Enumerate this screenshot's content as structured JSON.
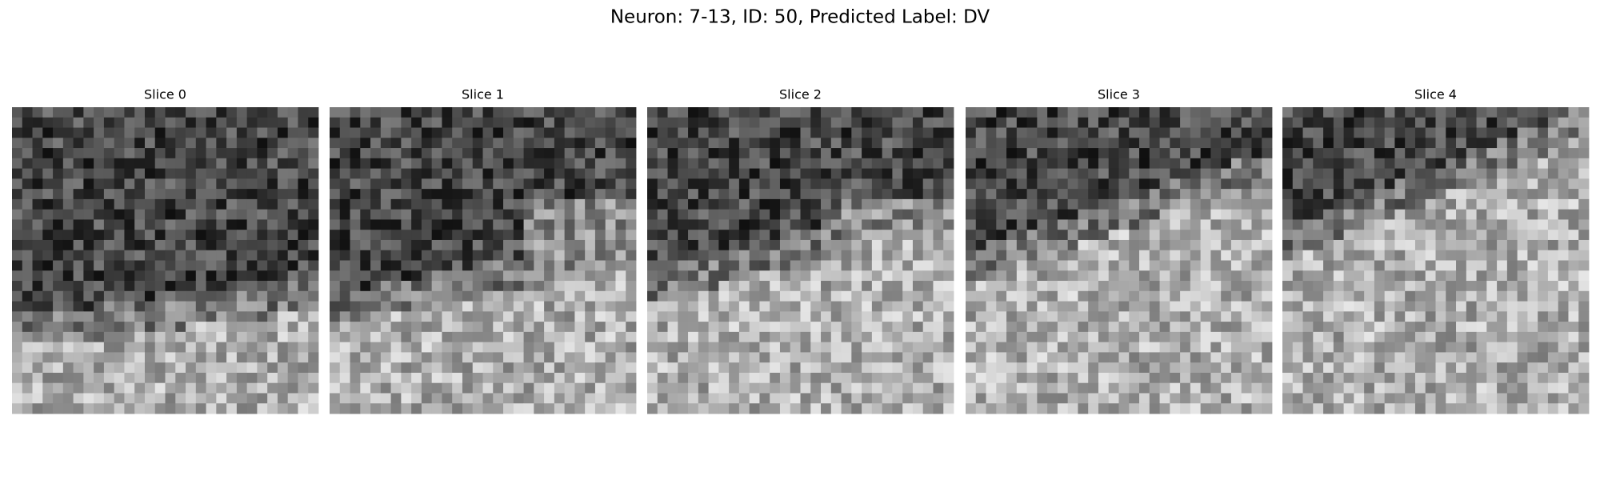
{
  "title": "Neuron: 7-13, ID: 50, Predicted Label: DV",
  "panels": [
    {
      "label": "Slice 0"
    },
    {
      "label": "Slice 1"
    },
    {
      "label": "Slice 2"
    },
    {
      "label": "Slice 3"
    },
    {
      "label": "Slice 4"
    }
  ]
}
